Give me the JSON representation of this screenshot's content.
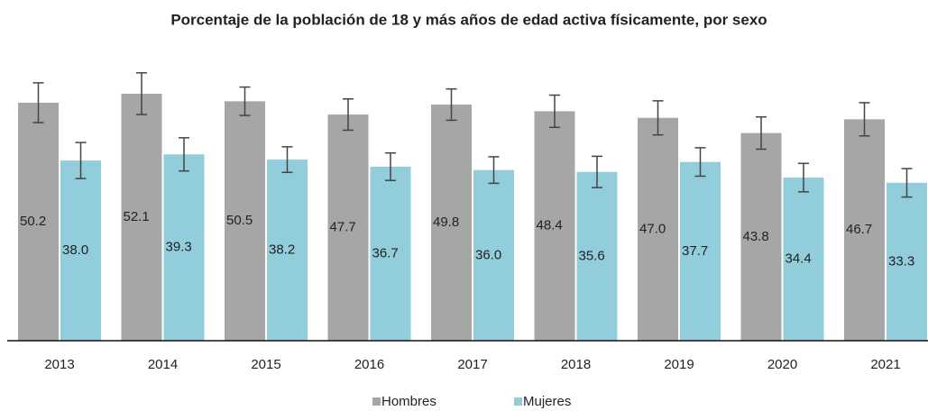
{
  "chart_data": {
    "type": "bar",
    "title": "Porcentaje de la población de 18 y más años de edad activa físicamente, por sexo",
    "categories": [
      "2013",
      "2014",
      "2015",
      "2016",
      "2017",
      "2018",
      "2019",
      "2020",
      "2021"
    ],
    "series": [
      {
        "name": "Hombres",
        "color": "#a6a6a6",
        "values": [
          50.2,
          52.1,
          50.5,
          47.7,
          49.8,
          48.4,
          47.0,
          43.8,
          46.7
        ],
        "value_labels": [
          "50.2",
          "52.1",
          "50.5",
          "47.7",
          "49.8",
          "48.4",
          "47.0",
          "43.8",
          "46.7"
        ],
        "errors": [
          4.2,
          4.4,
          3.0,
          3.3,
          3.3,
          3.4,
          3.6,
          3.4,
          3.5
        ]
      },
      {
        "name": "Mujeres",
        "color": "#92cddc",
        "values": [
          38.0,
          39.3,
          38.2,
          36.7,
          36.0,
          35.6,
          37.7,
          34.4,
          33.3
        ],
        "value_labels": [
          "38.0",
          "39.3",
          "38.2",
          "36.7",
          "36.0",
          "35.6",
          "37.7",
          "34.4",
          "33.3"
        ],
        "errors": [
          3.8,
          3.5,
          2.7,
          2.9,
          2.8,
          3.3,
          3.0,
          3.0,
          3.0
        ]
      }
    ],
    "legend": "bottom"
  }
}
